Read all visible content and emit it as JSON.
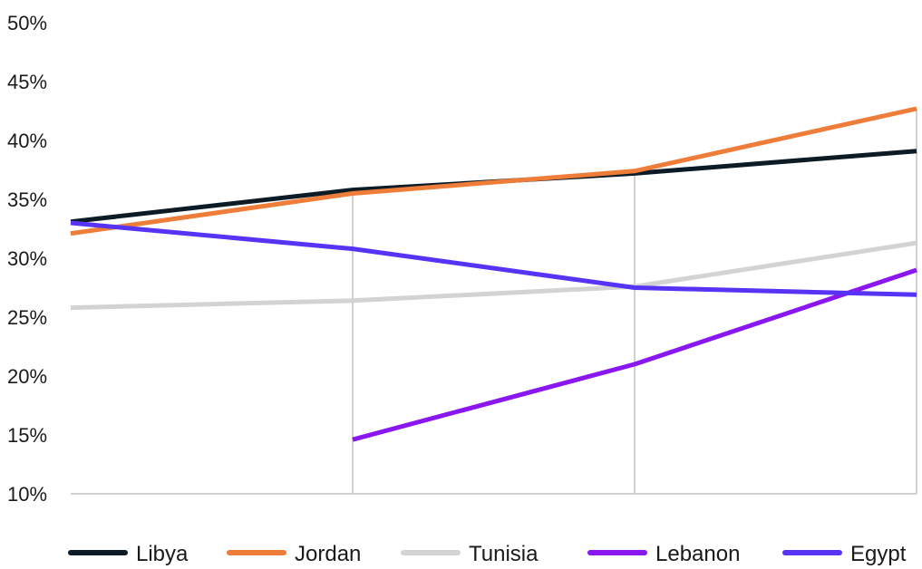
{
  "chart_data": {
    "type": "line",
    "title": "",
    "xlabel": "",
    "ylabel": "",
    "ylim": [
      10,
      50
    ],
    "y_ticks": [
      10,
      15,
      20,
      25,
      30,
      35,
      40,
      45,
      50
    ],
    "y_tick_suffix": "%",
    "x": [
      1,
      2,
      3,
      4
    ],
    "categories": [
      "",
      "",
      "",
      ""
    ],
    "vertical_grid": true,
    "horizontal_grid": false,
    "legend_position": "bottom",
    "series": [
      {
        "name": "Libya",
        "color": "#0d1b26",
        "values": [
          33.1,
          35.8,
          37.2,
          39.1
        ]
      },
      {
        "name": "Jordan",
        "color": "#ee7d3a",
        "values": [
          32.1,
          35.5,
          37.4,
          42.7
        ]
      },
      {
        "name": "Tunisia",
        "color": "#d3d3d3",
        "values": [
          25.8,
          26.4,
          27.6,
          31.3
        ]
      },
      {
        "name": "Lebanon",
        "color": "#8a16f0",
        "values": [
          null,
          14.6,
          21.0,
          29.0
        ]
      },
      {
        "name": "Egypt",
        "color": "#5733f5",
        "values": [
          33.0,
          30.8,
          27.5,
          26.9
        ]
      }
    ]
  }
}
